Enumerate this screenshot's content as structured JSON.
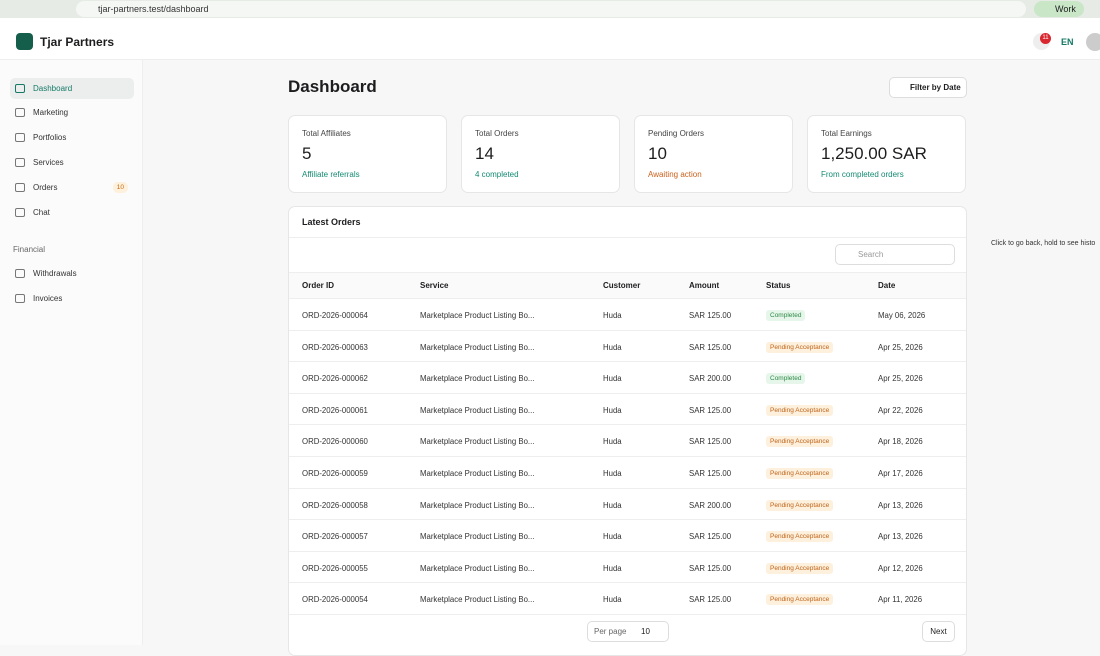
{
  "browser": {
    "url": "tjar-partners.test/dashboard",
    "profile": "Work",
    "tooltip": "Click to go back, hold to see histo"
  },
  "header": {
    "brand": "Tjar Partners",
    "notifications": "11",
    "language": "EN"
  },
  "sidebar": {
    "items": [
      {
        "label": "Dashboard"
      },
      {
        "label": "Marketing"
      },
      {
        "label": "Portfolios"
      },
      {
        "label": "Services"
      },
      {
        "label": "Orders",
        "badge": "10"
      },
      {
        "label": "Chat"
      }
    ],
    "section": "Financial",
    "section_items": [
      {
        "label": "Withdrawals"
      },
      {
        "label": "Invoices"
      }
    ]
  },
  "main": {
    "title": "Dashboard",
    "filter": "Filter by Date",
    "stats": [
      {
        "label": "Total Affiliates",
        "value": "5",
        "note": "Affiliate referrals",
        "tone": "teal"
      },
      {
        "label": "Total Orders",
        "value": "14",
        "note": "4 completed",
        "tone": "teal"
      },
      {
        "label": "Pending Orders",
        "value": "10",
        "note": "Awaiting action",
        "tone": "orange"
      },
      {
        "label": "Total Earnings",
        "value": "1,250.00 SAR",
        "note": "From completed orders",
        "tone": "teal"
      }
    ],
    "orders": {
      "title": "Latest Orders",
      "search": "Search",
      "columns": [
        "Order ID",
        "Service",
        "Customer",
        "Amount",
        "Status",
        "Date"
      ],
      "rows": [
        [
          "ORD-2026-000064",
          "Marketplace Product Listing Bo...",
          "Huda",
          "SAR 125.00",
          "Completed",
          "May 06, 2026"
        ],
        [
          "ORD-2026-000063",
          "Marketplace Product Listing Bo...",
          "Huda",
          "SAR 125.00",
          "Pending Acceptance",
          "Apr 25, 2026"
        ],
        [
          "ORD-2026-000062",
          "Marketplace Product Listing Bo...",
          "Huda",
          "SAR 200.00",
          "Completed",
          "Apr 25, 2026"
        ],
        [
          "ORD-2026-000061",
          "Marketplace Product Listing Bo...",
          "Huda",
          "SAR 125.00",
          "Pending Acceptance",
          "Apr 22, 2026"
        ],
        [
          "ORD-2026-000060",
          "Marketplace Product Listing Bo...",
          "Huda",
          "SAR 125.00",
          "Pending Acceptance",
          "Apr 18, 2026"
        ],
        [
          "ORD-2026-000059",
          "Marketplace Product Listing Bo...",
          "Huda",
          "SAR 125.00",
          "Pending Acceptance",
          "Apr 17, 2026"
        ],
        [
          "ORD-2026-000058",
          "Marketplace Product Listing Bo...",
          "Huda",
          "SAR 200.00",
          "Pending Acceptance",
          "Apr 13, 2026"
        ],
        [
          "ORD-2026-000057",
          "Marketplace Product Listing Bo...",
          "Huda",
          "SAR 125.00",
          "Pending Acceptance",
          "Apr 13, 2026"
        ],
        [
          "ORD-2026-000055",
          "Marketplace Product Listing Bo...",
          "Huda",
          "SAR 125.00",
          "Pending Acceptance",
          "Apr 12, 2026"
        ],
        [
          "ORD-2026-000054",
          "Marketplace Product Listing Bo...",
          "Huda",
          "SAR 125.00",
          "Pending Acceptance",
          "Apr 11, 2026"
        ]
      ],
      "per_page_label": "Per page",
      "per_page": "10",
      "next": "Next"
    }
  }
}
